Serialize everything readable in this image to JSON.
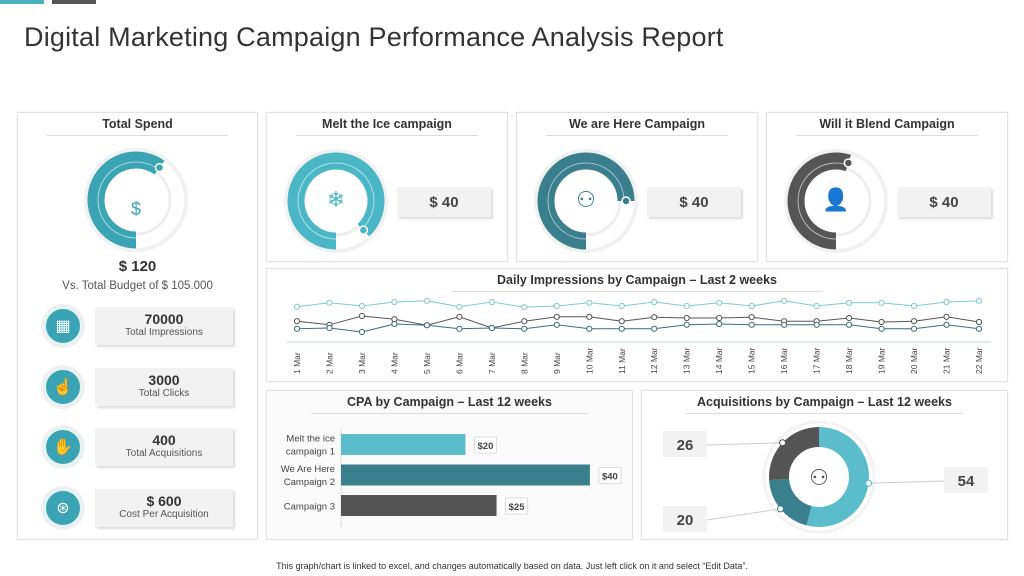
{
  "title": "Digital Marketing Campaign Performance Analysis Report",
  "colors": {
    "teal": "#4bb7c6",
    "dark_teal": "#3a7f8c",
    "gray": "#555555",
    "light_teal": "#7fcbc8"
  },
  "total_spend": {
    "title": "Total Spend",
    "value": "$ 120",
    "budget_text": "Vs. Total Budget of $ 105.000",
    "icon": "hand-dollar-icon",
    "gauge_fill": 0.6
  },
  "campaigns": [
    {
      "title": "Melt the Ice campaign",
      "value": "$ 40",
      "icon": "ice-icon",
      "gauge_fill": 0.88,
      "color": "#4bb7c6"
    },
    {
      "title": "We are Here Campaign",
      "value": "$ 40",
      "icon": "presenter-icon",
      "gauge_fill": 0.75,
      "color": "#3a7f8c"
    },
    {
      "title": "Will it Blend Campaign",
      "value": "$ 40",
      "icon": "user-chat-icon",
      "gauge_fill": 0.55,
      "color": "#555555"
    }
  ],
  "kpis": [
    {
      "value": "70000",
      "label": "Total Impressions",
      "icon": "chart-icon"
    },
    {
      "value": "3000",
      "label": "Total Clicks",
      "icon": "click-icon"
    },
    {
      "value": "400",
      "label": "Total Acquisitions",
      "icon": "handshake-icon"
    },
    {
      "value": "$ 600",
      "label": "Cost Per Acquisition",
      "icon": "hand-coin-icon"
    }
  ],
  "footer": "This graph/chart is linked to excel, and changes automatically based on data. Just left click on it and select “Edit Data”.",
  "chart_data": [
    {
      "type": "line",
      "title": "Daily Impressions by Campaign – Last 2 weeks",
      "categories": [
        "1 Mar",
        "2 Mar",
        "3 Mar",
        "4 Mar",
        "5 Mar",
        "6 Mar",
        "7 Mar",
        "8 Mar",
        "9 Mar",
        "10 Mar",
        "11 Mar",
        "12 Mar",
        "13 Mar",
        "14 Mar",
        "15 Mar",
        "16 Mar",
        "17 Mar",
        "18 Mar",
        "19 Mar",
        "20 Mar",
        "21 Mar",
        "22 Mar"
      ],
      "series": [
        {
          "color": "#7fcbc8",
          "values": [
            83,
            93,
            85,
            95,
            98,
            83,
            95,
            82,
            85,
            93,
            85,
            95,
            85,
            93,
            85,
            98,
            85,
            93,
            93,
            85,
            95,
            98
          ]
        },
        {
          "color": "#555555",
          "values": [
            47,
            38,
            60,
            52,
            37,
            58,
            30,
            47,
            58,
            58,
            47,
            57,
            55,
            55,
            57,
            47,
            47,
            55,
            45,
            47,
            58,
            45
          ]
        },
        {
          "color": "#3a6f78",
          "values": [
            28,
            30,
            20,
            40,
            37,
            28,
            30,
            28,
            38,
            28,
            28,
            28,
            38,
            40,
            38,
            38,
            38,
            38,
            28,
            28,
            38,
            28
          ]
        }
      ],
      "ylim": [
        0,
        110
      ],
      "grid": false,
      "legend": "none"
    },
    {
      "type": "bar",
      "orientation": "horizontal",
      "title": "CPA by Campaign – Last 12 weeks",
      "categories": [
        "Melt the ice campaign 1",
        "We Are Here Campaign 2",
        "Campaign 3"
      ],
      "values": [
        20,
        40,
        25
      ],
      "data_labels": [
        "$20",
        "$40",
        "$25"
      ],
      "colors": [
        "#5bbdcb",
        "#3a7f8c",
        "#555555"
      ],
      "xlim": [
        0,
        45
      ]
    },
    {
      "type": "pie",
      "donut": true,
      "title": "Acquisitions by Campaign – Last 12 weeks",
      "values": [
        54,
        20,
        26
      ],
      "data_labels": [
        "54",
        "20",
        "26"
      ],
      "colors": [
        "#5bbdcb",
        "#3a7f8c",
        "#555555"
      ],
      "center_icon": "audience-icon"
    }
  ]
}
